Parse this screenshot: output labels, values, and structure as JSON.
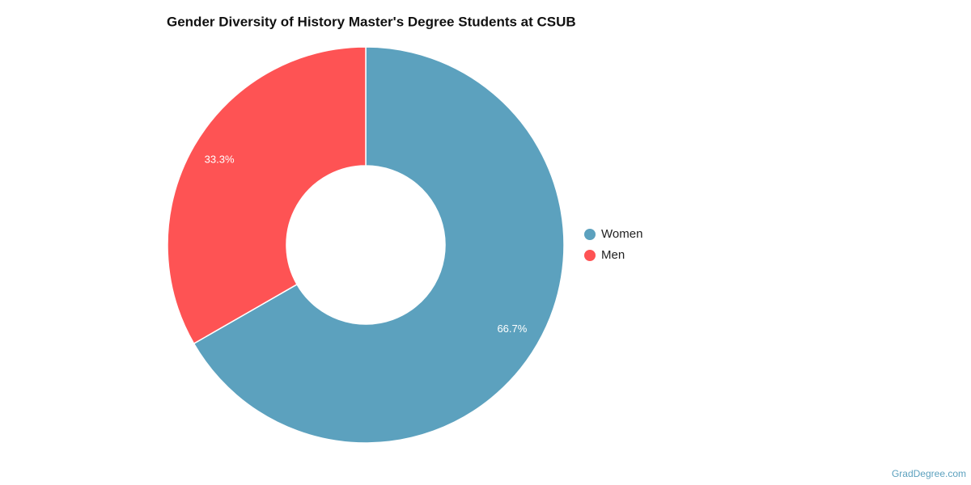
{
  "chart_data": {
    "type": "donut",
    "title": "Gender Diversity of History Master's Degree Students at CSUB",
    "categories": [
      "Women",
      "Men"
    ],
    "values": [
      66.7,
      33.3
    ],
    "value_labels": [
      "66.7%",
      "33.3%"
    ],
    "colors": [
      "#5ca1be",
      "#fe5354"
    ],
    "legend": "right"
  },
  "source": "GradDegree.com"
}
